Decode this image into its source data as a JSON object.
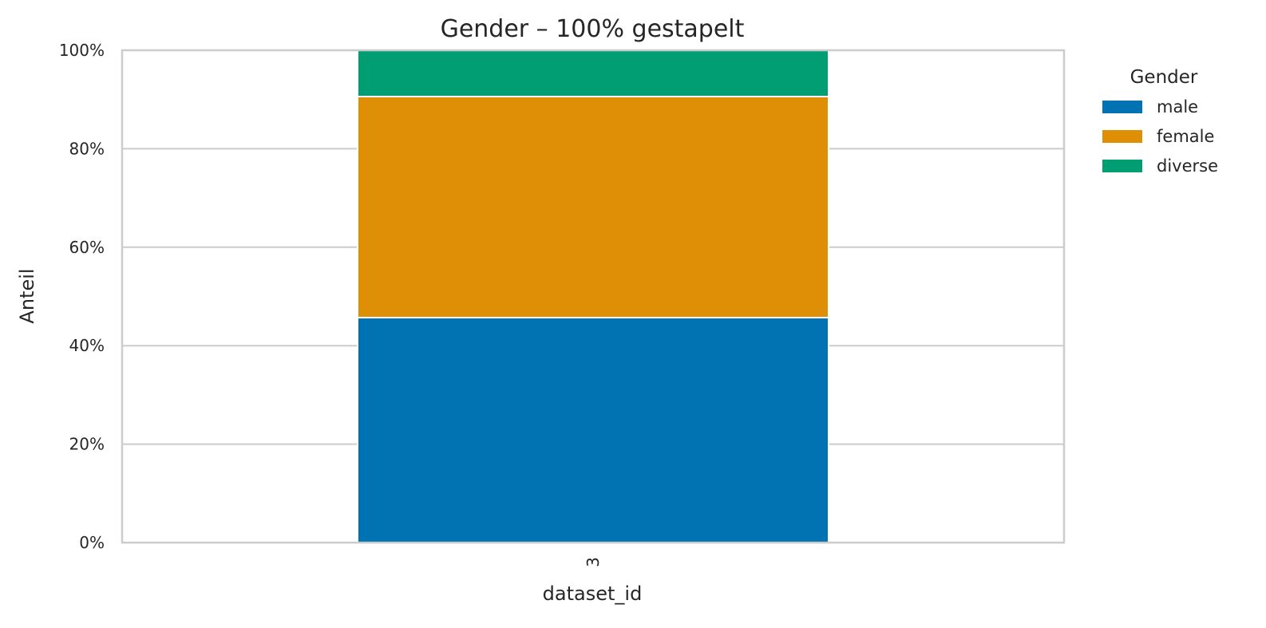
{
  "chart_data": {
    "type": "bar",
    "stacked": true,
    "normalized": true,
    "title": "Gender – 100% gestapelt",
    "xlabel": "dataset_id",
    "ylabel": "Anteil",
    "categories": [
      "3"
    ],
    "ylim": [
      0,
      1
    ],
    "yticks": [
      0,
      0.2,
      0.4,
      0.6,
      0.8,
      1.0
    ],
    "ytick_labels": [
      "0%",
      "20%",
      "40%",
      "60%",
      "80%",
      "100%"
    ],
    "grid": "horizontal",
    "legend": {
      "title": "Gender",
      "placement": "outside-right-top"
    },
    "series": [
      {
        "name": "male",
        "color": "#0173b2",
        "values": [
          0.457
        ]
      },
      {
        "name": "female",
        "color": "#de8f05",
        "values": [
          0.449
        ]
      },
      {
        "name": "diverse",
        "color": "#029e73",
        "values": [
          0.094
        ]
      }
    ]
  }
}
